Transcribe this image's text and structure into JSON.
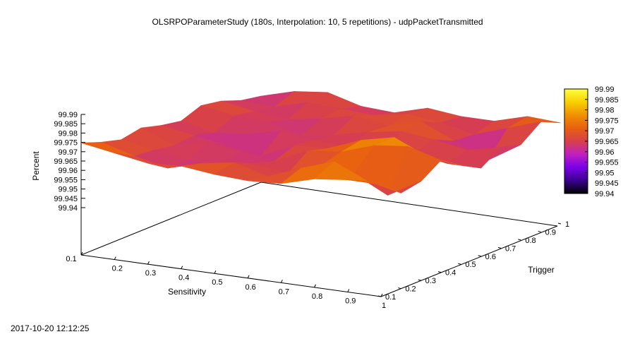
{
  "chart_data": {
    "type": "surface",
    "title": "OLSRPOParameterStudy (180s, Interpolation: 10, 5 repetitions) - udpPacketTransmitted",
    "xlabel": "Sensitivity",
    "ylabel": "Trigger",
    "zlabel": "Percent",
    "xlim": [
      0.1,
      1
    ],
    "ylim": [
      0.1,
      1
    ],
    "zlim": [
      99.94,
      99.99
    ],
    "x_ticks": [
      "0.1",
      "0.2",
      "0.3",
      "0.4",
      "0.5",
      "0.6",
      "0.7",
      "0.8",
      "0.9",
      "1"
    ],
    "y_ticks": [
      "0.1",
      "0.2",
      "0.3",
      "0.4",
      "0.5",
      "0.6",
      "0.7",
      "0.8",
      "0.9",
      "1"
    ],
    "z_ticks": [
      "99.94",
      "99.945",
      "99.95",
      "99.955",
      "99.96",
      "99.965",
      "99.97",
      "99.975",
      "99.98",
      "99.985",
      "99.99"
    ],
    "colorbar_ticks": [
      "99.94",
      "99.945",
      "99.95",
      "99.955",
      "99.96",
      "99.965",
      "99.97",
      "99.975",
      "99.98",
      "99.985",
      "99.99"
    ],
    "x": [
      0.1,
      0.2,
      0.3,
      0.4,
      0.5,
      0.6,
      0.7,
      0.8,
      0.9,
      1.0
    ],
    "y": [
      0.1,
      0.2,
      0.3,
      0.4,
      0.5,
      0.6,
      0.7,
      0.8,
      0.9,
      1.0
    ],
    "z": [
      [
        99.975,
        99.972,
        99.969,
        99.97,
        99.968,
        99.967,
        99.968,
        99.973,
        99.975,
        99.975
      ],
      [
        99.971,
        99.966,
        99.962,
        99.967,
        99.97,
        99.965,
        99.972,
        99.978,
        99.97,
        99.966
      ],
      [
        99.968,
        99.965,
        99.962,
        99.961,
        99.965,
        99.962,
        99.969,
        99.967,
        99.958,
        99.968
      ],
      [
        99.97,
        99.963,
        99.967,
        99.965,
        99.962,
        99.97,
        99.972,
        99.978,
        99.98,
        99.975
      ],
      [
        99.967,
        99.964,
        99.961,
        99.958,
        99.966,
        99.967,
        99.974,
        99.978,
        99.97,
        99.968
      ],
      [
        99.965,
        99.961,
        99.963,
        99.967,
        99.965,
        99.963,
        99.96,
        99.965,
        99.962,
        99.962
      ],
      [
        99.969,
        99.966,
        99.965,
        99.96,
        99.963,
        99.967,
        99.97,
        99.968,
        99.965,
        99.969
      ],
      [
        99.967,
        99.964,
        99.962,
        99.965,
        99.969,
        99.966,
        99.971,
        99.963,
        99.955,
        99.966
      ],
      [
        99.963,
        99.962,
        99.967,
        99.966,
        99.965,
        99.968,
        99.966,
        99.962,
        99.968,
        99.974
      ],
      [
        99.961,
        99.966,
        99.968,
        99.963,
        99.962,
        99.967,
        99.965,
        99.965,
        99.97,
        99.969
      ]
    ],
    "colormap": [
      "#000000",
      "#3a0090",
      "#7b00e8",
      "#c020c0",
      "#d8404a",
      "#e86010",
      "#f09000",
      "#f8d000",
      "#ffff40"
    ],
    "grid": false,
    "legend": "colorbar-right"
  },
  "timestamp": "2017-10-20 12:12:25"
}
